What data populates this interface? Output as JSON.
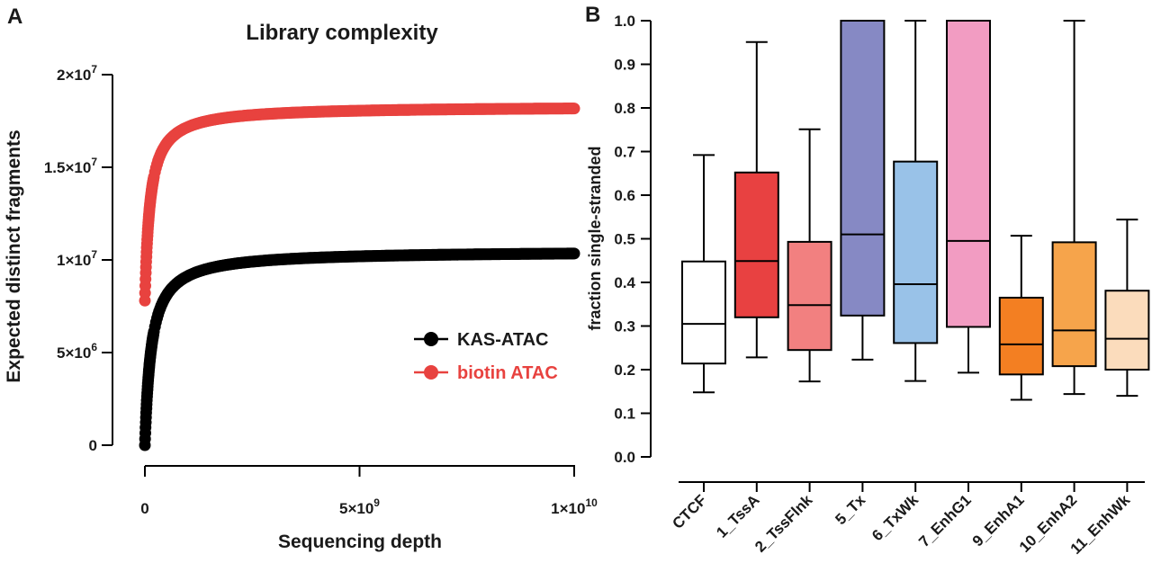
{
  "figure": {
    "panel_a_label": "A",
    "panel_b_label": "B"
  },
  "chart_data": [
    {
      "type": "scatter",
      "title": "Library complexity",
      "xlabel": "Sequencing depth",
      "ylabel": "Expected distinct fragments",
      "xlim": [
        0,
        10000000000
      ],
      "ylim": [
        0,
        20000000
      ],
      "x_ticks": [
        {
          "value": 0,
          "label": "0"
        },
        {
          "value": 5000000000,
          "base": "5×10",
          "exp": "9"
        },
        {
          "value": 10000000000,
          "base": "1×10",
          "exp": "10"
        }
      ],
      "y_ticks": [
        {
          "value": 0,
          "label": "0"
        },
        {
          "value": 5000000,
          "base": "5×10",
          "exp": "6"
        },
        {
          "value": 10000000,
          "base": "1×10",
          "exp": "7"
        },
        {
          "value": 15000000,
          "base": "1.5×10",
          "exp": "7"
        },
        {
          "value": 20000000,
          "base": "2×10",
          "exp": "7"
        }
      ],
      "series": [
        {
          "name": "KAS-ATAC",
          "color": "#000000",
          "plateau": 10500000,
          "half_saturation": 150000000,
          "start_y": 0
        },
        {
          "name": "biotin ATAC",
          "color": "#e8423f",
          "plateau": 18300000,
          "half_saturation": 120000000,
          "start_y": 7800000
        }
      ],
      "legend": "right"
    },
    {
      "type": "box",
      "ylabel": "fraction single-stranded",
      "ylim": [
        0,
        1
      ],
      "y_ticks": [
        "0.0",
        "0.1",
        "0.2",
        "0.3",
        "0.4",
        "0.5",
        "0.6",
        "0.7",
        "0.8",
        "0.9",
        "1.0"
      ],
      "categories": [
        "CTCF",
        "1_TssA",
        "2_TssFlnk",
        "5_Tx",
        "6_TxWk",
        "7_EnhG1",
        "9_EnhA1",
        "10_EnhA2",
        "11_EnhWk"
      ],
      "boxes": [
        {
          "category": "CTCF",
          "min": 0.148,
          "q1": 0.214,
          "median": 0.305,
          "q3": 0.448,
          "max": 0.692,
          "color": "#ffffff"
        },
        {
          "category": "1_TssA",
          "min": 0.228,
          "q1": 0.32,
          "median": 0.449,
          "q3": 0.652,
          "max": 0.951,
          "color": "#e84141"
        },
        {
          "category": "2_TssFlnk",
          "min": 0.173,
          "q1": 0.245,
          "median": 0.348,
          "q3": 0.493,
          "max": 0.751,
          "color": "#f28080"
        },
        {
          "category": "5_Tx",
          "min": 0.223,
          "q1": 0.324,
          "median": 0.51,
          "q3": 1.0,
          "max": 1.0,
          "color": "#8689c4"
        },
        {
          "category": "6_TxWk",
          "min": 0.174,
          "q1": 0.261,
          "median": 0.396,
          "q3": 0.677,
          "max": 1.0,
          "color": "#99c2e8"
        },
        {
          "category": "7_EnhG1",
          "min": 0.193,
          "q1": 0.298,
          "median": 0.495,
          "q3": 1.0,
          "max": 1.0,
          "color": "#f29cc2"
        },
        {
          "category": "9_EnhA1",
          "min": 0.131,
          "q1": 0.189,
          "median": 0.258,
          "q3": 0.365,
          "max": 0.507,
          "color": "#f37f22"
        },
        {
          "category": "10_EnhA2",
          "min": 0.144,
          "q1": 0.208,
          "median": 0.29,
          "q3": 0.492,
          "max": 1.0,
          "color": "#f6a44b"
        },
        {
          "category": "11_EnhWk",
          "min": 0.14,
          "q1": 0.2,
          "median": 0.271,
          "q3": 0.381,
          "max": 0.544,
          "color": "#fbdcbc"
        }
      ]
    }
  ]
}
